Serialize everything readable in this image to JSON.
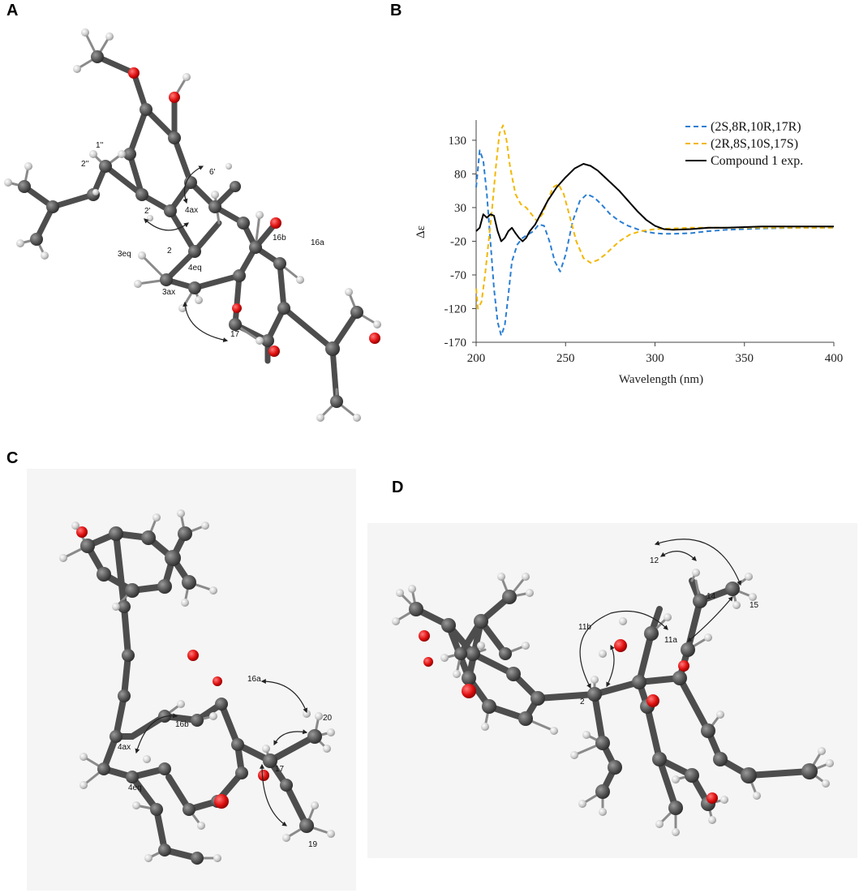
{
  "panels": {
    "A": {
      "letter": "A",
      "atom_labels": [
        "1''",
        "2''",
        "2'",
        "6'",
        "4ax",
        "2",
        "3eq",
        "3ax",
        "4eq",
        "16b",
        "16a",
        "17"
      ]
    },
    "B": {
      "letter": "B"
    },
    "C": {
      "letter": "C",
      "atom_labels": [
        "16a",
        "20",
        "16b",
        "4ax",
        "4eq",
        "17",
        "19"
      ]
    },
    "D": {
      "letter": "D",
      "atom_labels": [
        "12",
        "14",
        "15",
        "11b",
        "11a",
        "2"
      ]
    }
  },
  "chart_data": {
    "type": "line",
    "title": "",
    "xlabel": "Wavelength (nm)",
    "ylabel": "Δε",
    "xlim": [
      200,
      400
    ],
    "ylim": [
      -170,
      160
    ],
    "x_ticks": [
      200,
      250,
      300,
      350,
      400
    ],
    "y_ticks": [
      130,
      80,
      30,
      -20,
      -70,
      -120,
      -170
    ],
    "grid": false,
    "legend_position": "top-right",
    "series": [
      {
        "name": "(2S,8R,10R,17R)",
        "color": "#2a7ed3",
        "style": "dashed",
        "x": [
          200,
          202,
          204,
          206,
          208,
          210,
          212,
          214,
          216,
          218,
          220,
          223,
          226,
          229,
          232,
          235,
          238,
          241,
          244,
          247,
          250,
          254,
          258,
          262,
          266,
          270,
          275,
          280,
          285,
          290,
          295,
          300,
          305,
          310,
          320,
          330,
          340,
          360,
          380,
          400
        ],
        "y": [
          60,
          115,
          100,
          50,
          -20,
          -90,
          -140,
          -160,
          -145,
          -100,
          -50,
          -25,
          -15,
          -10,
          -5,
          5,
          3,
          -20,
          -50,
          -65,
          -40,
          10,
          40,
          50,
          45,
          35,
          20,
          10,
          3,
          -2,
          -6,
          -8,
          -9,
          -9,
          -8,
          -5,
          -3,
          -1,
          0,
          0
        ]
      },
      {
        "name": "(2R,8S,10S,17S)",
        "color": "#f2b705",
        "style": "dashed",
        "x": [
          200,
          201,
          203,
          205,
          207,
          209,
          211,
          213,
          215,
          217,
          219,
          222,
          225,
          228,
          231,
          234,
          237,
          240,
          243,
          246,
          249,
          252,
          256,
          260,
          264,
          268,
          272,
          276,
          280,
          286,
          292,
          300,
          310,
          320,
          340,
          360,
          380,
          400
        ],
        "y": [
          -90,
          -120,
          -110,
          -70,
          -20,
          30,
          90,
          140,
          152,
          130,
          90,
          50,
          35,
          30,
          20,
          10,
          20,
          40,
          60,
          65,
          50,
          20,
          -20,
          -45,
          -52,
          -48,
          -40,
          -30,
          -20,
          -10,
          -5,
          -2,
          -1,
          0,
          0,
          0,
          0,
          0
        ]
      },
      {
        "name": "Compound 1 exp.",
        "color": "#000000",
        "style": "solid",
        "x": [
          200,
          202,
          204,
          206,
          208,
          210,
          212,
          214,
          216,
          218,
          220,
          222,
          224,
          226,
          228,
          230,
          233,
          236,
          240,
          245,
          250,
          255,
          260,
          264,
          268,
          272,
          276,
          280,
          285,
          290,
          295,
          300,
          305,
          310,
          320,
          330,
          340,
          360,
          380,
          400
        ],
        "y": [
          -5,
          0,
          20,
          15,
          20,
          18,
          -5,
          -20,
          -15,
          -5,
          0,
          -8,
          -15,
          -20,
          -15,
          -5,
          5,
          20,
          40,
          60,
          75,
          88,
          95,
          92,
          85,
          75,
          65,
          55,
          40,
          25,
          12,
          3,
          -2,
          -3,
          -2,
          0,
          0,
          2,
          2,
          2
        ]
      }
    ]
  }
}
